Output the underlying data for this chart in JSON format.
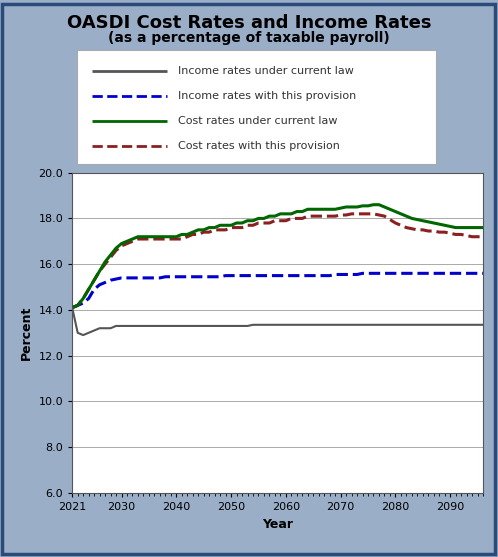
{
  "title": "OASDI Cost Rates and Income Rates",
  "subtitle": "(as a percentage of taxable payroll)",
  "xlabel": "Year",
  "ylabel": "Percent",
  "bg_color": "#9baec8",
  "plot_bg_color": "#ffffff",
  "ylim": [
    6.0,
    20.0
  ],
  "yticks": [
    6.0,
    8.0,
    10.0,
    12.0,
    14.0,
    16.0,
    18.0,
    20.0
  ],
  "xticks": [
    2021,
    2030,
    2040,
    2050,
    2060,
    2070,
    2080,
    2090
  ],
  "years": [
    2021,
    2022,
    2023,
    2024,
    2025,
    2026,
    2027,
    2028,
    2029,
    2030,
    2031,
    2032,
    2033,
    2034,
    2035,
    2036,
    2037,
    2038,
    2039,
    2040,
    2041,
    2042,
    2043,
    2044,
    2045,
    2046,
    2047,
    2048,
    2049,
    2050,
    2051,
    2052,
    2053,
    2054,
    2055,
    2056,
    2057,
    2058,
    2059,
    2060,
    2061,
    2062,
    2063,
    2064,
    2065,
    2066,
    2067,
    2068,
    2069,
    2070,
    2071,
    2072,
    2073,
    2074,
    2075,
    2076,
    2077,
    2078,
    2079,
    2080,
    2081,
    2082,
    2083,
    2084,
    2085,
    2086,
    2087,
    2088,
    2089,
    2090,
    2091,
    2092,
    2093,
    2094,
    2095,
    2096
  ],
  "income_current_law": [
    14.1,
    13.0,
    12.9,
    13.0,
    13.1,
    13.2,
    13.2,
    13.2,
    13.3,
    13.3,
    13.3,
    13.3,
    13.3,
    13.3,
    13.3,
    13.3,
    13.3,
    13.3,
    13.3,
    13.3,
    13.3,
    13.3,
    13.3,
    13.3,
    13.3,
    13.3,
    13.3,
    13.3,
    13.3,
    13.3,
    13.3,
    13.3,
    13.3,
    13.35,
    13.35,
    13.35,
    13.35,
    13.35,
    13.35,
    13.35,
    13.35,
    13.35,
    13.35,
    13.35,
    13.35,
    13.35,
    13.35,
    13.35,
    13.35,
    13.35,
    13.35,
    13.35,
    13.35,
    13.35,
    13.35,
    13.35,
    13.35,
    13.35,
    13.35,
    13.35,
    13.35,
    13.35,
    13.35,
    13.35,
    13.35,
    13.35,
    13.35,
    13.35,
    13.35,
    13.35,
    13.35,
    13.35,
    13.35,
    13.35,
    13.35,
    13.35
  ],
  "income_provision": [
    14.1,
    14.2,
    14.3,
    14.5,
    14.9,
    15.1,
    15.2,
    15.3,
    15.35,
    15.4,
    15.4,
    15.4,
    15.4,
    15.4,
    15.4,
    15.4,
    15.4,
    15.45,
    15.45,
    15.45,
    15.45,
    15.45,
    15.45,
    15.45,
    15.45,
    15.45,
    15.45,
    15.45,
    15.5,
    15.5,
    15.5,
    15.5,
    15.5,
    15.5,
    15.5,
    15.5,
    15.5,
    15.5,
    15.5,
    15.5,
    15.5,
    15.5,
    15.5,
    15.5,
    15.5,
    15.5,
    15.5,
    15.5,
    15.55,
    15.55,
    15.55,
    15.55,
    15.55,
    15.6,
    15.6,
    15.6,
    15.6,
    15.6,
    15.6,
    15.6,
    15.6,
    15.6,
    15.6,
    15.6,
    15.6,
    15.6,
    15.6,
    15.6,
    15.6,
    15.6,
    15.6,
    15.6,
    15.6,
    15.6,
    15.6,
    15.6
  ],
  "cost_current_law": [
    14.1,
    14.2,
    14.5,
    14.9,
    15.3,
    15.7,
    16.1,
    16.4,
    16.7,
    16.9,
    17.0,
    17.1,
    17.2,
    17.2,
    17.2,
    17.2,
    17.2,
    17.2,
    17.2,
    17.2,
    17.3,
    17.3,
    17.4,
    17.5,
    17.5,
    17.6,
    17.6,
    17.7,
    17.7,
    17.7,
    17.8,
    17.8,
    17.9,
    17.9,
    18.0,
    18.0,
    18.1,
    18.1,
    18.2,
    18.2,
    18.2,
    18.3,
    18.3,
    18.4,
    18.4,
    18.4,
    18.4,
    18.4,
    18.4,
    18.45,
    18.5,
    18.5,
    18.5,
    18.55,
    18.55,
    18.6,
    18.6,
    18.5,
    18.4,
    18.3,
    18.2,
    18.1,
    18.0,
    17.95,
    17.9,
    17.85,
    17.8,
    17.75,
    17.7,
    17.65,
    17.6,
    17.6,
    17.6,
    17.6,
    17.6,
    17.6
  ],
  "cost_provision": [
    14.1,
    14.2,
    14.5,
    14.9,
    15.3,
    15.7,
    16.0,
    16.3,
    16.6,
    16.8,
    16.9,
    17.0,
    17.1,
    17.1,
    17.1,
    17.1,
    17.1,
    17.1,
    17.1,
    17.1,
    17.1,
    17.2,
    17.3,
    17.3,
    17.4,
    17.4,
    17.5,
    17.5,
    17.5,
    17.6,
    17.6,
    17.6,
    17.7,
    17.7,
    17.8,
    17.8,
    17.8,
    17.9,
    17.9,
    17.9,
    18.0,
    18.0,
    18.0,
    18.1,
    18.1,
    18.1,
    18.1,
    18.1,
    18.1,
    18.15,
    18.15,
    18.2,
    18.2,
    18.2,
    18.2,
    18.2,
    18.15,
    18.1,
    17.95,
    17.8,
    17.7,
    17.6,
    17.55,
    17.5,
    17.5,
    17.45,
    17.45,
    17.4,
    17.4,
    17.35,
    17.3,
    17.3,
    17.25,
    17.2,
    17.2,
    17.2
  ],
  "income_current_color": "#555555",
  "income_provision_color": "#0000cc",
  "cost_current_color": "#006600",
  "cost_provision_color": "#8b2020",
  "legend_labels": [
    "Income rates under current law",
    "Income rates with this provision",
    "Cost rates under current law",
    "Cost rates with this provision"
  ],
  "outer_border_color": "#2a4a7a",
  "title_fontsize": 13,
  "subtitle_fontsize": 10,
  "legend_fontsize": 8,
  "axis_label_fontsize": 9,
  "tick_fontsize": 8
}
